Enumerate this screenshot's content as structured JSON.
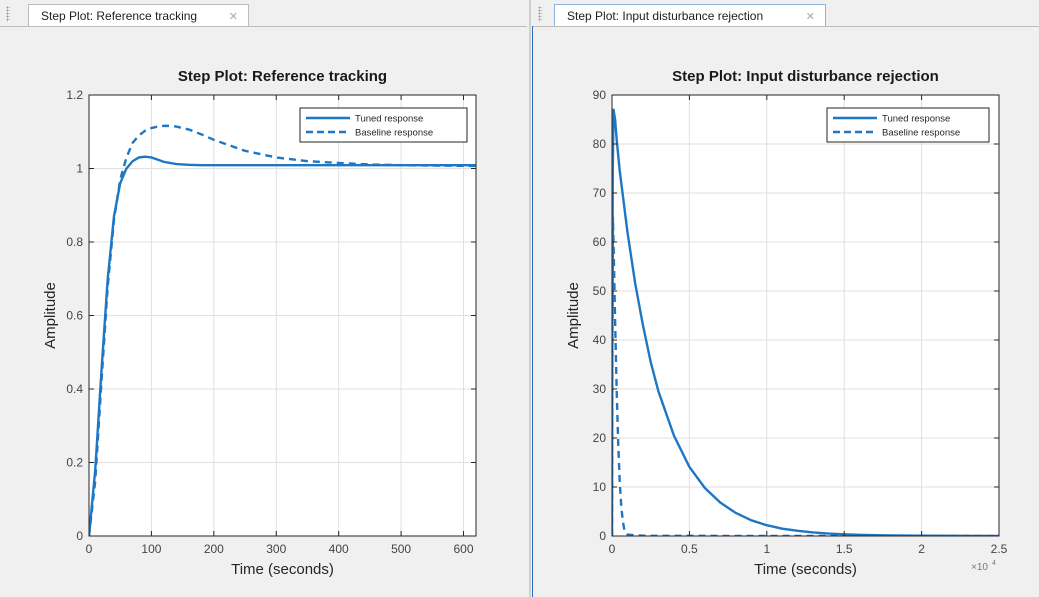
{
  "tabs": {
    "left": {
      "label": "Step Plot: Reference tracking",
      "close_glyph": "✕"
    },
    "right": {
      "label": "Step Plot: Input disturbance rejection",
      "close_glyph": "✕"
    }
  },
  "colors": {
    "series": "#1f77c4",
    "axis": "#262626",
    "grid": "#dfdfdf",
    "background": "#f0f0f0"
  },
  "chart_data": [
    {
      "type": "line",
      "title": "Step Plot: Reference tracking",
      "xlabel": "Time (seconds)",
      "ylabel": "Amplitude",
      "xlim": [
        0,
        620
      ],
      "ylim": [
        0,
        1.2
      ],
      "xticks": [
        0,
        100,
        200,
        300,
        400,
        500,
        600
      ],
      "yticks": [
        0,
        0.2,
        0.4,
        0.6,
        0.8,
        1,
        1.2
      ],
      "xtick_labels": [
        "0",
        "100",
        "200",
        "300",
        "400",
        "500",
        "600"
      ],
      "ytick_labels": [
        "0",
        "0.2",
        "0.4",
        "0.6",
        "0.8",
        "1",
        "1.2"
      ],
      "grid": true,
      "legend_position": "top-right",
      "series": [
        {
          "name": "Tuned response",
          "style": "solid",
          "x": [
            0,
            10,
            20,
            30,
            40,
            50,
            60,
            70,
            80,
            90,
            100,
            110,
            120,
            140,
            160,
            180,
            200,
            250,
            300,
            400,
            500,
            620
          ],
          "y": [
            0,
            0.18,
            0.45,
            0.7,
            0.87,
            0.96,
            1.0,
            1.02,
            1.03,
            1.032,
            1.03,
            1.024,
            1.018,
            1.012,
            1.01,
            1.009,
            1.009,
            1.009,
            1.009,
            1.009,
            1.009,
            1.009
          ]
        },
        {
          "name": "Baseline response",
          "style": "dashed",
          "x": [
            0,
            10,
            20,
            30,
            40,
            50,
            60,
            70,
            80,
            90,
            100,
            110,
            120,
            130,
            140,
            160,
            180,
            200,
            250,
            300,
            350,
            400,
            450,
            500,
            550,
            620
          ],
          "y": [
            0,
            0.15,
            0.42,
            0.68,
            0.86,
            0.97,
            1.03,
            1.07,
            1.09,
            1.103,
            1.11,
            1.114,
            1.116,
            1.116,
            1.114,
            1.106,
            1.093,
            1.078,
            1.048,
            1.03,
            1.02,
            1.015,
            1.011,
            1.009,
            1.008,
            1.007
          ]
        }
      ]
    },
    {
      "type": "line",
      "title": "Step Plot: Input disturbance rejection",
      "xlabel": "Time (seconds)",
      "ylabel": "Amplitude",
      "x_multiplier": "×10",
      "x_multiplier_exp": "4",
      "xlim": [
        0,
        2.5
      ],
      "ylim": [
        0,
        90
      ],
      "xticks": [
        0,
        0.5,
        1,
        1.5,
        2,
        2.5
      ],
      "yticks": [
        0,
        10,
        20,
        30,
        40,
        50,
        60,
        70,
        80,
        90
      ],
      "xtick_labels": [
        "0",
        "0.5",
        "1",
        "1.5",
        "2",
        "2.5"
      ],
      "ytick_labels": [
        "0",
        "10",
        "20",
        "30",
        "40",
        "50",
        "60",
        "70",
        "80",
        "90"
      ],
      "grid": true,
      "legend_position": "top-right",
      "series": [
        {
          "name": "Tuned response",
          "style": "solid",
          "x": [
            0,
            0.002,
            0.005,
            0.01,
            0.02,
            0.03,
            0.05,
            0.1,
            0.15,
            0.2,
            0.25,
            0.3,
            0.4,
            0.5,
            0.6,
            0.7,
            0.8,
            0.9,
            1.0,
            1.1,
            1.2,
            1.3,
            1.4,
            1.5,
            1.6,
            1.8,
            2.0,
            2.2,
            2.4,
            2.5
          ],
          "y": [
            0,
            40,
            75,
            87,
            85,
            81,
            74.5,
            62,
            51.5,
            43,
            35.5,
            29.5,
            20.5,
            14.1,
            9.8,
            6.8,
            4.7,
            3.2,
            2.2,
            1.5,
            1.05,
            0.72,
            0.5,
            0.35,
            0.24,
            0.12,
            0.06,
            0.03,
            0.01,
            0.01
          ]
        },
        {
          "name": "Baseline response",
          "style": "dashed",
          "x": [
            0,
            0.003,
            0.006,
            0.01,
            0.015,
            0.02,
            0.03,
            0.04,
            0.05,
            0.06,
            0.07,
            0.08,
            0.1,
            0.2,
            1.0,
            2.0,
            2.5
          ],
          "y": [
            0,
            45,
            65,
            60,
            52,
            44,
            30,
            19,
            11,
            6,
            3,
            1.2,
            0.3,
            0.05,
            0,
            0,
            0
          ]
        }
      ]
    }
  ]
}
